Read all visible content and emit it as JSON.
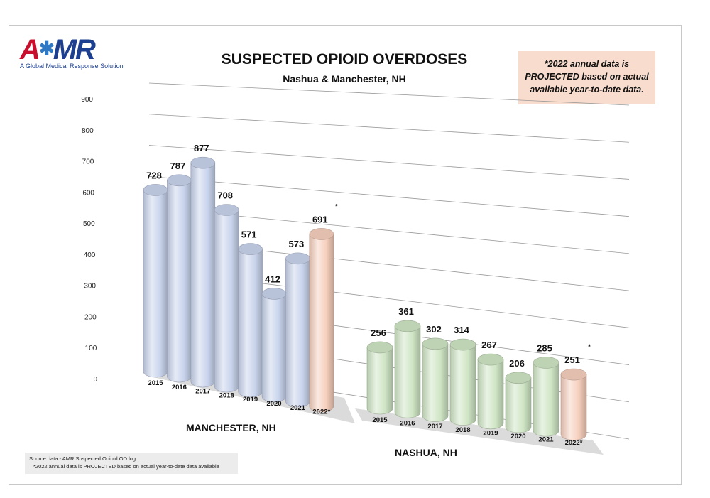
{
  "brand": {
    "logo_text": "AMR",
    "tagline": "A Global Medical Response Solution"
  },
  "title": "SUSPECTED OPIOID OVERDOSES",
  "subtitle": "Nashua & Manchester, NH",
  "note": "*2022 annual data is PROJECTED based on actual available year-to-date data.",
  "footnote": {
    "line1": "Source data - AMR Suspected Opioid OD log",
    "line2": "*2022 annual data is PROJECTED based on actual year-to-date data available"
  },
  "colors": {
    "actual_manchester": "#c8d3ec",
    "actual_nashua": "#cfe5c4",
    "projected": "#f6cfbd"
  },
  "chart_data": {
    "type": "bar",
    "title": "SUSPECTED OPIOID OVERDOSES",
    "subtitle": "Nashua & Manchester, NH",
    "ylim": [
      0,
      900
    ],
    "yticks": [
      0,
      100,
      200,
      300,
      400,
      500,
      600,
      700,
      800,
      900
    ],
    "grid": true,
    "groups": [
      {
        "name": "MANCHESTER, NH",
        "categories": [
          "2015",
          "2016",
          "2017",
          "2018",
          "2019",
          "2020",
          "2021",
          "2022*"
        ],
        "values": [
          728,
          787,
          877,
          708,
          571,
          412,
          573,
          691
        ],
        "projected": [
          false,
          false,
          false,
          false,
          false,
          false,
          false,
          true
        ]
      },
      {
        "name": "NASHUA, NH",
        "categories": [
          "2015",
          "2016",
          "2017",
          "2018",
          "2019",
          "2020",
          "2021",
          "2022*"
        ],
        "values": [
          256,
          361,
          302,
          314,
          267,
          206,
          285,
          251
        ],
        "projected": [
          false,
          false,
          false,
          false,
          false,
          false,
          false,
          true
        ]
      }
    ],
    "projection_marker": "*"
  }
}
